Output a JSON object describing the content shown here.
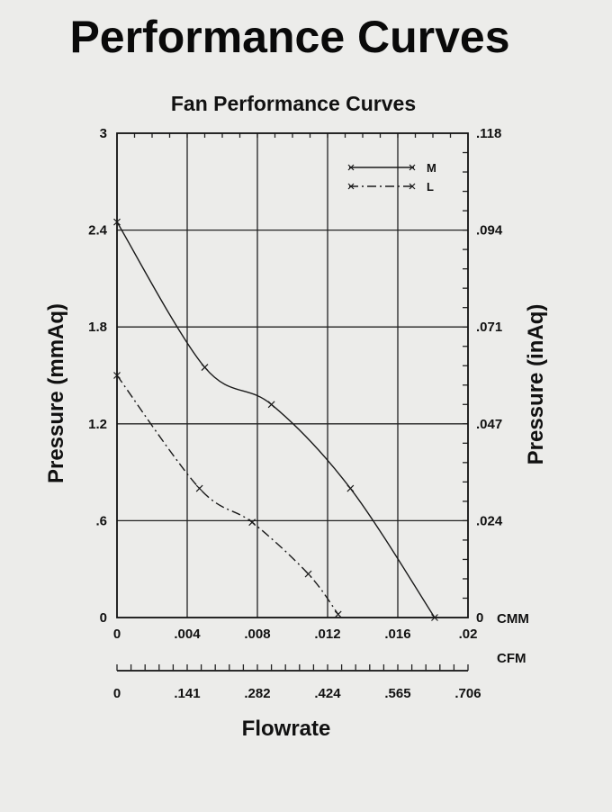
{
  "page": {
    "heading": "Performance Curves"
  },
  "chart_data": {
    "type": "line",
    "title": "Fan Performance Curves",
    "xlabel": "Flowrate",
    "ylabel": "Pressure  (mmAq)",
    "ylabel_right": "Pressure  (inAq)",
    "x_unit_primary": "CMM",
    "x_unit_secondary": "CFM",
    "xlim": [
      0,
      0.02
    ],
    "ylim": [
      0,
      3
    ],
    "x_ticks": [
      {
        "value": 0,
        "label": "0"
      },
      {
        "value": 0.004,
        "label": ".004"
      },
      {
        "value": 0.008,
        "label": ".008"
      },
      {
        "value": 0.012,
        "label": ".012"
      },
      {
        "value": 0.016,
        "label": ".016"
      },
      {
        "value": 0.02,
        "label": ".02"
      }
    ],
    "y_ticks": [
      {
        "value": 0,
        "label": "0"
      },
      {
        "value": 0.6,
        "label": ".6"
      },
      {
        "value": 1.2,
        "label": "1.2"
      },
      {
        "value": 1.8,
        "label": "1.8"
      },
      {
        "value": 2.4,
        "label": "2.4"
      },
      {
        "value": 3,
        "label": "3"
      }
    ],
    "y_ticks_right": [
      {
        "value": 0,
        "label": "0"
      },
      {
        "value": 0.6,
        "label": ".024"
      },
      {
        "value": 1.2,
        "label": ".047"
      },
      {
        "value": 1.8,
        "label": ".071"
      },
      {
        "value": 2.4,
        "label": ".094"
      },
      {
        "value": 3,
        "label": ".118"
      }
    ],
    "cfm_ticks": [
      {
        "value": 0,
        "label": "0"
      },
      {
        "value": 0.004,
        "label": ".141"
      },
      {
        "value": 0.008,
        "label": ".282"
      },
      {
        "value": 0.012,
        "label": ".424"
      },
      {
        "value": 0.016,
        "label": ".565"
      },
      {
        "value": 0.02,
        "label": ".706"
      }
    ],
    "grid": true,
    "legend_position": "top-right",
    "series": [
      {
        "name": "M",
        "style": "solid",
        "x": [
          0,
          0.005,
          0.0088,
          0.0133,
          0.0181
        ],
        "y": [
          2.45,
          1.55,
          1.32,
          0.8,
          0
        ]
      },
      {
        "name": "L",
        "style": "dash-dot",
        "x": [
          0,
          0.0047,
          0.0077,
          0.0109,
          0.0126
        ],
        "y": [
          1.5,
          0.8,
          0.59,
          0.27,
          0.02
        ]
      }
    ]
  }
}
